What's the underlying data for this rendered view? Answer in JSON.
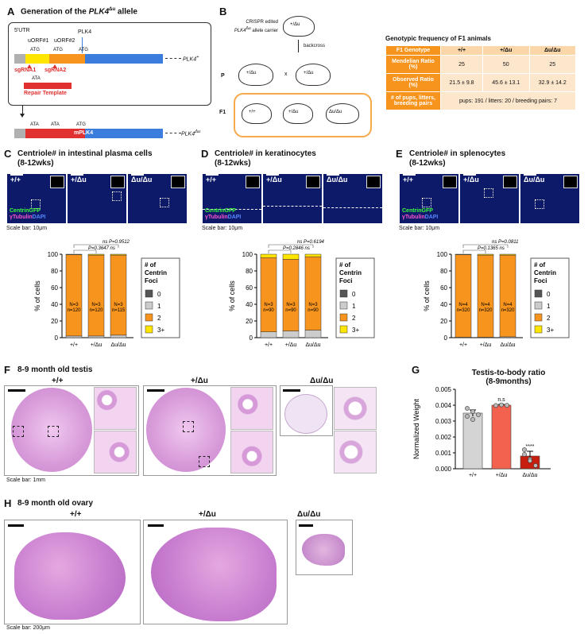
{
  "panelA": {
    "letter": "A",
    "title_pre": "Generation of the ",
    "title_gene": "PLK4",
    "title_sup": "Δu",
    "title_post": " allele",
    "utr": "5'UTR",
    "uorf1": "uORF#1",
    "uorf2": "uORF#2",
    "plk4": "PLK4",
    "atg1": "ATG",
    "atg2": "ATG",
    "atg3": "ATG",
    "sg1": "sgRNA1",
    "sg2": "sgRNA2",
    "ata": "ATA",
    "repair": "Repair Template",
    "wt_label": "PLK4",
    "wt_sup": "+",
    "ata_a": "ATA",
    "ata_b": "ATA",
    "atg_m": "ATG",
    "mplk4": "mPLK4",
    "mut_label": "PLK4",
    "mut_sup": "Δu"
  },
  "panelB": {
    "letter": "B",
    "carrier_line1": "CRISPR edited",
    "carrier_line2": "allele carrier",
    "carrier_gene": "PLK4",
    "carrier_sup": "Δu",
    "carrier_geno": "+/Δu",
    "backcross": "backcross",
    "p": "P",
    "x": "x",
    "p1": "+/Δu",
    "p2": "+/Δu",
    "f1": "F1",
    "f1a": "+/+",
    "f1b": "+/Δu",
    "f1c": "Δu/Δu",
    "table_title": "Genotypic frequency of F1 animals",
    "table": {
      "header": [
        "F1 Genotype",
        "+/+",
        "+/Δu",
        "Δu/Δu"
      ],
      "row1": [
        "Mendelian Ratio (%)",
        "25",
        "50",
        "25"
      ],
      "row2": [
        "Observed Ratio (%)",
        "21.5 ± 9.8",
        "45.6 ± 13.1",
        "32.9 ± 14.2"
      ],
      "row3_label": "# of pups, litters, breeding pairs",
      "row3_value": "pups: 191 / litters: 20 / breeding pairs: 7"
    }
  },
  "panelC": {
    "letter": "C",
    "title": "Centriole# in intestinal plasma cells",
    "subtitle": "(8-12wks)",
    "g1": "+/+",
    "g2": "+/Δu",
    "g3": "Δu/Δu",
    "stain1": "CentrinGFP",
    "stain2": "γTubulin",
    "stain3": "DAPI",
    "scale": "Scale bar: 10μm"
  },
  "panelD": {
    "letter": "D",
    "title": "Centriole# in keratinocytes",
    "subtitle": "(8-12wks)",
    "g1": "+/+",
    "g2": "+/Δu",
    "g3": "Δu/Δu",
    "stain1": "CentrinGFP",
    "stain2": "γTubulin",
    "stain3": "DAPI",
    "scale": "Scale bar: 10μm"
  },
  "panelE": {
    "letter": "E",
    "title": "Centriole# in splenocytes",
    "subtitle": "(8-12wks)",
    "g1": "+/+",
    "g2": "+/Δu",
    "g3": "Δu/Δu",
    "stain1": "CentrinGFP",
    "stain2": "γTubulin",
    "stain3": "DAPI",
    "scale": "Scale bar: 10μm"
  },
  "legend": {
    "title1": "# of",
    "title2": "Centrin",
    "title3": "Foci",
    "items": [
      "0",
      "1",
      "2",
      "3+"
    ]
  },
  "panelF": {
    "letter": "F",
    "title": "8-9 month old testis",
    "g1": "+/+",
    "g2": "+/Δu",
    "g3": "Δu/Δu",
    "scale": "Scale bar: 1mm"
  },
  "panelG": {
    "letter": "G",
    "title1": "Testis-to-body ratio",
    "title2": "(8-9months)"
  },
  "panelH": {
    "letter": "H",
    "title": "8-9 month old ovary",
    "g1": "+/+",
    "g2": "+/Δu",
    "g3": "Δu/Δu",
    "scale": "Scale bar: 200μm"
  },
  "colors": {
    "orange": "#f7941d",
    "gray": "#cccccc",
    "dark": "#555555",
    "yellow": "#ffe600",
    "blue": "#3b7ddd",
    "red": "#e03030",
    "bar_wt": "#d4d4d4",
    "bar_het": "#f2624f",
    "bar_hom": "#c81e10"
  },
  "chart_data": [
    {
      "id": "C",
      "type": "bar",
      "stacked": true,
      "categories": [
        "+/+",
        "+/Δu",
        "Δu/Δu"
      ],
      "series": [
        {
          "name": "0",
          "values": [
            0,
            0,
            0
          ]
        },
        {
          "name": "1",
          "values": [
            2,
            2,
            3
          ]
        },
        {
          "name": "2",
          "values": [
            97.5,
            97,
            96
          ]
        },
        {
          "name": "3+",
          "values": [
            0.5,
            1,
            1
          ]
        }
      ],
      "counts_N": [
        "N=3",
        "N=3",
        "N=3"
      ],
      "counts_n": [
        "n=120",
        "n=120",
        "n=115"
      ],
      "pvals": [
        "ns",
        "P=0.3647",
        "ns",
        "P=0.9512"
      ],
      "ylabel": "% of cells",
      "ylim": [
        0,
        100
      ],
      "yticks": [
        0,
        20,
        40,
        60,
        80,
        100
      ]
    },
    {
      "id": "D",
      "type": "bar",
      "stacked": true,
      "categories": [
        "+/+",
        "+/Δu",
        "Δu/Δu"
      ],
      "series": [
        {
          "name": "0",
          "values": [
            0,
            0,
            0
          ]
        },
        {
          "name": "1",
          "values": [
            7,
            8,
            9
          ]
        },
        {
          "name": "2",
          "values": [
            89,
            86,
            88
          ]
        },
        {
          "name": "3+",
          "values": [
            4,
            6,
            3
          ]
        }
      ],
      "counts_N": [
        "N=3",
        "N=3",
        "N=3"
      ],
      "counts_n": [
        "n=90",
        "n=90",
        "n=90"
      ],
      "pvals": [
        "ns",
        "P=0.2846",
        "ns",
        "P=0.6194"
      ],
      "ylabel": "% of cells",
      "ylim": [
        0,
        100
      ],
      "yticks": [
        0,
        20,
        40,
        60,
        80,
        100
      ]
    },
    {
      "id": "E",
      "type": "bar",
      "stacked": true,
      "categories": [
        "+/+",
        "+/Δu",
        "Δu/Δu"
      ],
      "series": [
        {
          "name": "0",
          "values": [
            0,
            0,
            0
          ]
        },
        {
          "name": "1",
          "values": [
            0.5,
            0.5,
            1
          ]
        },
        {
          "name": "2",
          "values": [
            99,
            98.5,
            98
          ]
        },
        {
          "name": "3+",
          "values": [
            0.5,
            1,
            1
          ]
        }
      ],
      "counts_N": [
        "N=4",
        "N=4",
        "N=4"
      ],
      "counts_n": [
        "n=320",
        "n=320",
        "n=320"
      ],
      "pvals": [
        "ns",
        "P=0.1365",
        "ns",
        "P=0.0811"
      ],
      "ylabel": "% of cells",
      "ylim": [
        0,
        100
      ],
      "yticks": [
        0,
        20,
        40,
        60,
        80,
        100
      ]
    },
    {
      "id": "G",
      "type": "bar",
      "categories": [
        "+/+",
        "+/Δu",
        "Δu/Δu"
      ],
      "values": [
        0.0035,
        0.004,
        0.0008
      ],
      "errors": [
        0.0002,
        5e-05,
        0.0003
      ],
      "points": [
        [
          0.0033,
          0.0036,
          0.0034,
          0.0038,
          0.0031
        ],
        [
          0.00398,
          0.00402,
          0.00399
        ],
        [
          0.0012,
          0.0006,
          0.0002,
          0.0009,
          0.0005
        ]
      ],
      "significance": [
        "",
        "n.s",
        "****"
      ],
      "ylabel": "Normalized Weight",
      "ylim": [
        0,
        0.005
      ],
      "yticks": [
        "0.000",
        "0.001",
        "0.002",
        "0.003",
        "0.004",
        "0.005"
      ]
    }
  ]
}
